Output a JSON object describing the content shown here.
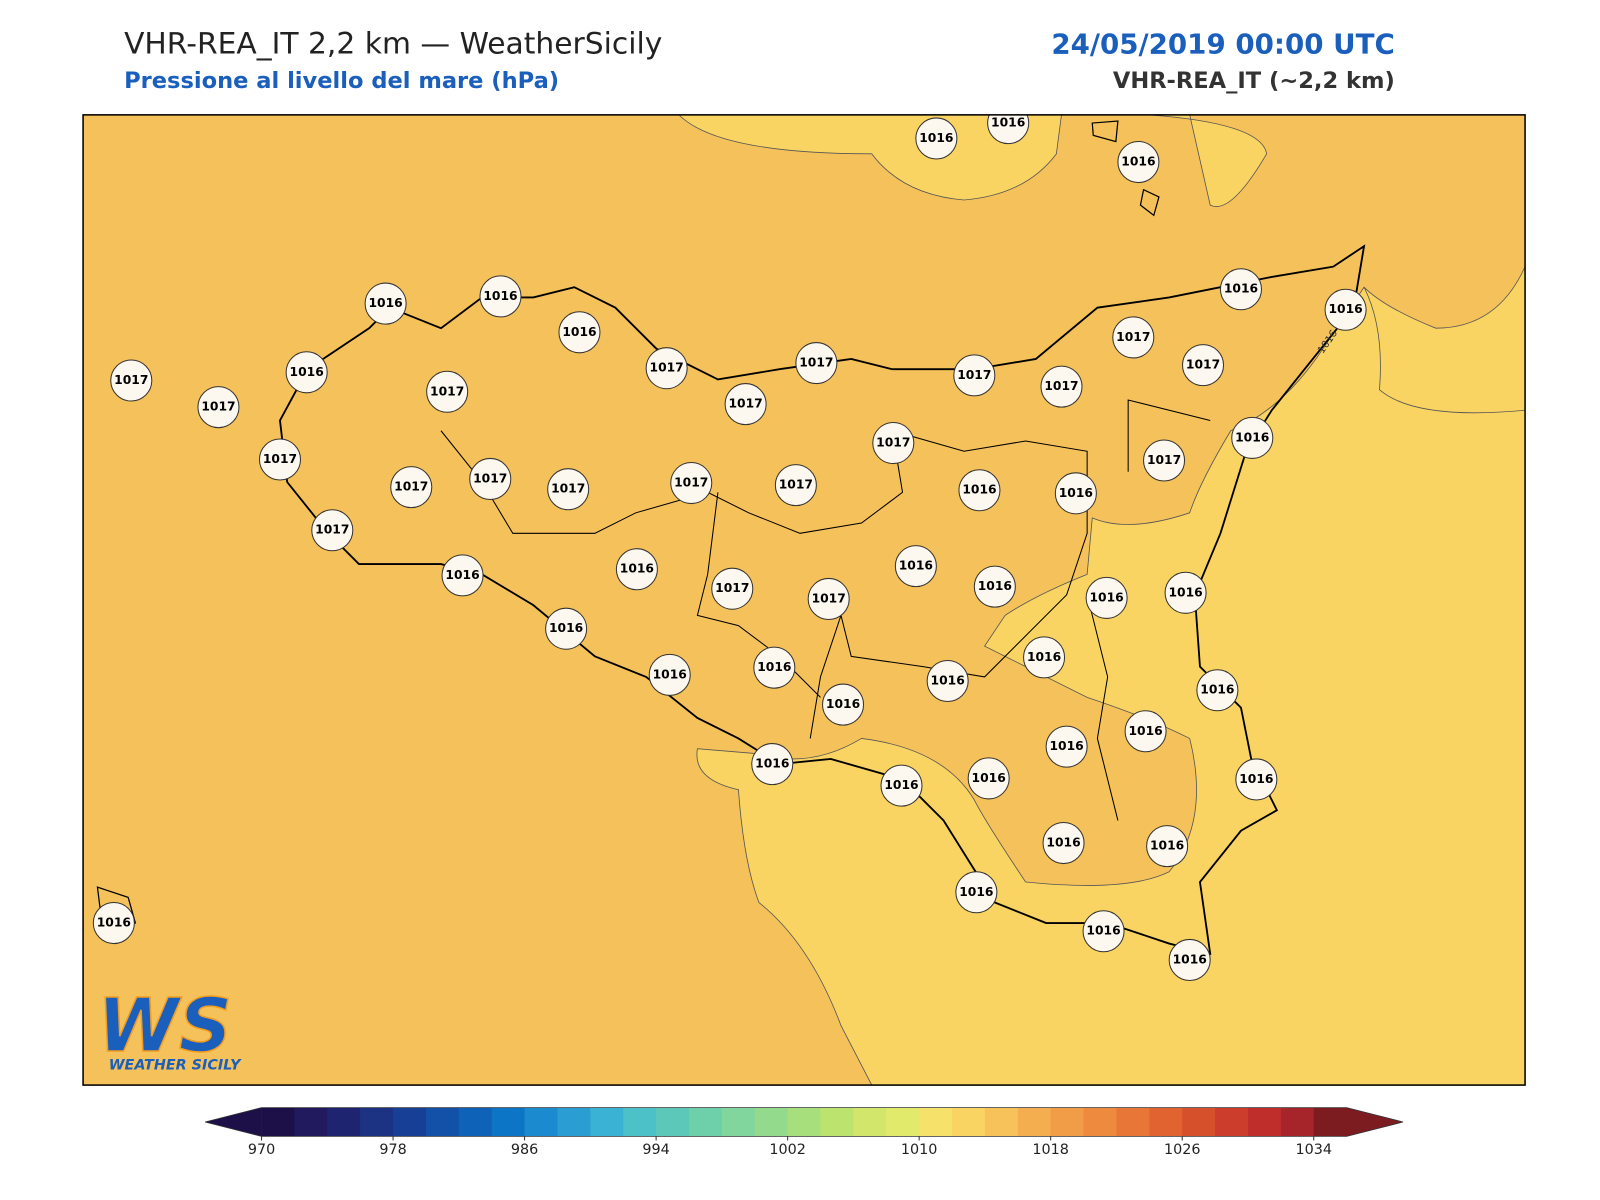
{
  "header": {
    "title": "VHR-REA_IT 2,2 km — WeatherSicily",
    "subtitle": "Pressione al livello del mare (hPa)",
    "date": "24/05/2019 00:00 UTC",
    "model": "VHR-REA_IT (~2,2 km)"
  },
  "map": {
    "stations": [
      1016,
      1016,
      1016,
      1016,
      1016,
      1016,
      1016,
      1016,
      1017,
      1017,
      1016,
      1017,
      1017,
      1017,
      1017,
      1017,
      1017,
      1017,
      1017,
      1017,
      1017,
      1017,
      1017,
      1017,
      1017,
      1017,
      1016,
      1016,
      1017,
      1016,
      1017,
      1016,
      1016,
      1017,
      1017,
      1016,
      1016,
      1016,
      1016,
      1016,
      1016,
      1016,
      1016,
      1016,
      1016,
      1016,
      1016,
      1016,
      1016,
      1016,
      1016,
      1016,
      1016,
      1016,
      1016,
      1016,
      1016,
      1016,
      1017
    ],
    "contour_label": "1016",
    "fill_colors": [
      "#f5c15a",
      "#fad462"
    ]
  },
  "logo": {
    "mark": "WS",
    "name": "WEATHER SICILY"
  },
  "colorbar": {
    "clim": [
      970,
      1036
    ],
    "ticks": [
      970,
      978,
      986,
      994,
      1002,
      1010,
      1018,
      1026,
      1034
    ],
    "colors": [
      "#1d1049",
      "#211a5e",
      "#1f2470",
      "#1c3282",
      "#173f95",
      "#1350a8",
      "#0e62b8",
      "#0c75c6",
      "#1c8acf",
      "#2a9dd2",
      "#39b2d3",
      "#4cc1c8",
      "#5bc8b9",
      "#6dd0ab",
      "#80d69c",
      "#93da8d",
      "#a8df7d",
      "#bde36f",
      "#d1e66b",
      "#e2ea6c",
      "#f6e16a",
      "#fad462",
      "#f7c25a",
      "#f4ad4f",
      "#f19c46",
      "#ed8a3e",
      "#e87737",
      "#e16330",
      "#d7502c",
      "#cc3e2b",
      "#bf2e2a",
      "#a6252a",
      "#7c1c21"
    ]
  }
}
